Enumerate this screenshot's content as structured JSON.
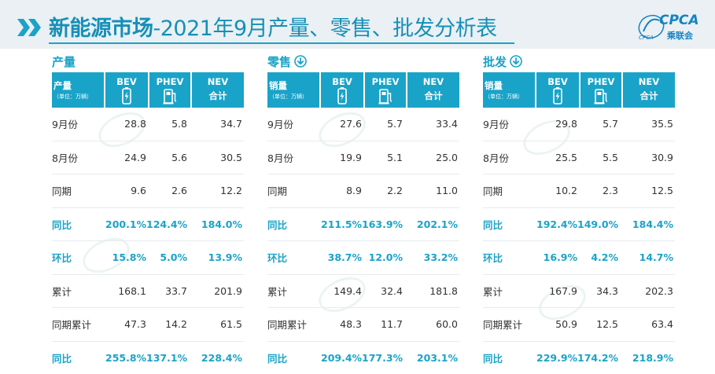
{
  "title": {
    "bold": "新能源市场",
    "rest": "-2021年9月产量、零售、批发分析表"
  },
  "logo": {
    "main": "CPCA",
    "cn": "乘联会",
    "small": "CPCA"
  },
  "headers": {
    "bev": "BEV",
    "phev": "PHEV",
    "nev": "NEV",
    "nev_sub": "合计",
    "unit": "（单位：万辆）"
  },
  "panels": [
    {
      "title": "产量",
      "has_icon": false,
      "first_header": "产量",
      "rows": [
        {
          "label": "9月份",
          "bev": "28.8",
          "phev": "5.8",
          "nev": "34.7",
          "hl": false
        },
        {
          "label": "8月份",
          "bev": "24.9",
          "phev": "5.6",
          "nev": "30.5",
          "hl": false
        },
        {
          "label": "同期",
          "bev": "9.6",
          "phev": "2.6",
          "nev": "12.2",
          "hl": false
        },
        {
          "label": "同比",
          "bev": "200.1%",
          "phev": "124.4%",
          "nev": "184.0%",
          "hl": true
        },
        {
          "label": "环比",
          "bev": "15.8%",
          "phev": "5.0%",
          "nev": "13.9%",
          "hl": true
        },
        {
          "label": "累计",
          "bev": "168.1",
          "phev": "33.7",
          "nev": "201.9",
          "hl": false
        },
        {
          "label": "同期累计",
          "bev": "47.3",
          "phev": "14.2",
          "nev": "61.5",
          "hl": false
        },
        {
          "label": "同比",
          "bev": "255.8%",
          "phev": "137.1%",
          "nev": "228.4%",
          "hl": true
        }
      ]
    },
    {
      "title": "零售",
      "has_icon": true,
      "first_header": "销量",
      "rows": [
        {
          "label": "9月份",
          "bev": "27.6",
          "phev": "5.7",
          "nev": "33.4",
          "hl": false
        },
        {
          "label": "8月份",
          "bev": "19.9",
          "phev": "5.1",
          "nev": "25.0",
          "hl": false
        },
        {
          "label": "同期",
          "bev": "8.9",
          "phev": "2.2",
          "nev": "11.0",
          "hl": false
        },
        {
          "label": "同比",
          "bev": "211.5%",
          "phev": "163.9%",
          "nev": "202.1%",
          "hl": true
        },
        {
          "label": "环比",
          "bev": "38.7%",
          "phev": "12.0%",
          "nev": "33.2%",
          "hl": true
        },
        {
          "label": "累计",
          "bev": "149.4",
          "phev": "32.4",
          "nev": "181.8",
          "hl": false
        },
        {
          "label": "同期累计",
          "bev": "48.3",
          "phev": "11.7",
          "nev": "60.0",
          "hl": false
        },
        {
          "label": "同比",
          "bev": "209.4%",
          "phev": "177.3%",
          "nev": "203.1%",
          "hl": true
        }
      ]
    },
    {
      "title": "批发",
      "has_icon": true,
      "first_header": "销量",
      "rows": [
        {
          "label": "9月份",
          "bev": "29.8",
          "phev": "5.7",
          "nev": "35.5",
          "hl": false
        },
        {
          "label": "8月份",
          "bev": "25.5",
          "phev": "5.5",
          "nev": "30.9",
          "hl": false
        },
        {
          "label": "同期",
          "bev": "10.2",
          "phev": "2.3",
          "nev": "12.5",
          "hl": false
        },
        {
          "label": "同比",
          "bev": "192.4%",
          "phev": "149.0%",
          "nev": "184.4%",
          "hl": true
        },
        {
          "label": "环比",
          "bev": "16.9%",
          "phev": "4.2%",
          "nev": "14.7%",
          "hl": true
        },
        {
          "label": "累计",
          "bev": "167.9",
          "phev": "34.3",
          "nev": "202.3",
          "hl": false
        },
        {
          "label": "同期累计",
          "bev": "50.9",
          "phev": "12.5",
          "nev": "63.4",
          "hl": false
        },
        {
          "label": "同比",
          "bev": "229.9%",
          "phev": "174.2%",
          "nev": "218.9%",
          "hl": true
        }
      ]
    }
  ],
  "colors": {
    "accent": "#1aa3c8",
    "text": "#333333",
    "header_bg": "#eaf0f4"
  }
}
